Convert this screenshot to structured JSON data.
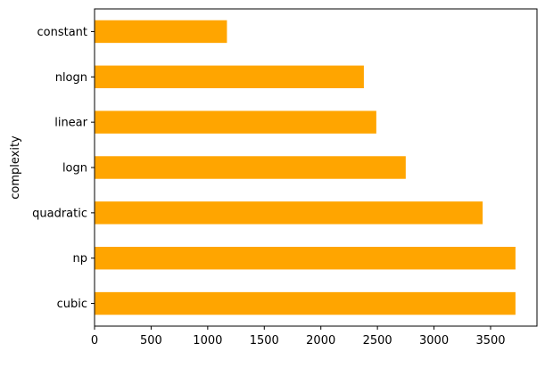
{
  "chart_data": {
    "type": "bar",
    "orientation": "horizontal",
    "title": "",
    "xlabel": "",
    "ylabel": "complexity",
    "categories": [
      "cubic",
      "np",
      "quadratic",
      "logn",
      "linear",
      "nlogn",
      "constant"
    ],
    "values": [
      3720,
      3720,
      3430,
      2750,
      2490,
      2380,
      1170
    ],
    "xlim": [
      0,
      3910
    ],
    "xticks": [
      0,
      500,
      1000,
      1500,
      2000,
      2500,
      3000,
      3500
    ],
    "grid": false,
    "bar_color": "#ffa500"
  }
}
